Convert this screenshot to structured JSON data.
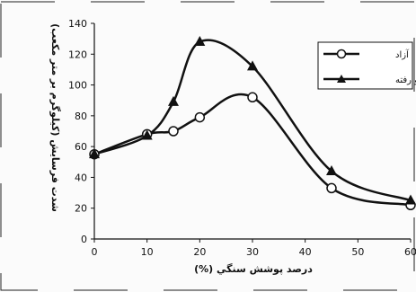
{
  "chart_data": {
    "type": "line",
    "title": "",
    "xlabel": "درصد پوشش سنگي (%)",
    "ylabel": "شدت فرسايش (كيلوگرم بر متر مكعب)",
    "xlim": [
      0,
      60
    ],
    "ylim": [
      0,
      140
    ],
    "x_ticks": [
      0,
      10,
      20,
      30,
      40,
      50,
      60
    ],
    "y_ticks": [
      0,
      20,
      40,
      60,
      80,
      100,
      120,
      140
    ],
    "grid": false,
    "legend_position": "top-right",
    "series": [
      {
        "name": "آزاد",
        "marker": "circle",
        "color": "#111111",
        "x": [
          0,
          10,
          15,
          20,
          30,
          45,
          60
        ],
        "y": [
          55,
          68,
          70,
          79,
          92,
          33,
          22
        ]
      },
      {
        "name": "فرو رفته",
        "marker": "triangle",
        "color": "#111111",
        "x": [
          0,
          10,
          15,
          20,
          30,
          45,
          60
        ],
        "y": [
          55,
          67,
          89,
          128,
          112,
          44,
          25
        ]
      }
    ]
  }
}
